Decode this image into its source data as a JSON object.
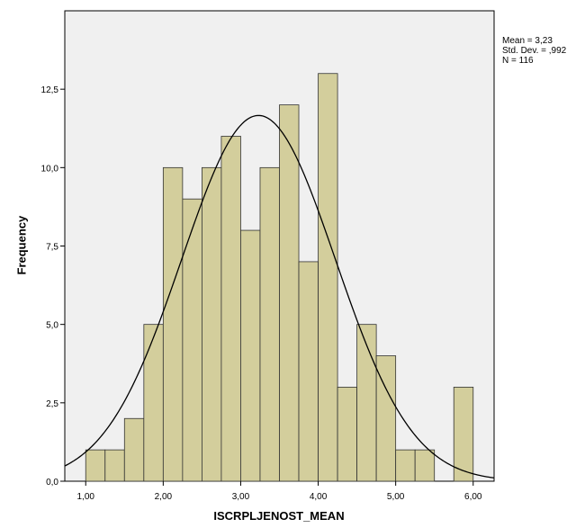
{
  "chart_data": {
    "type": "bar",
    "subtype": "histogram",
    "xlabel": "ISCRPLJENOST_MEAN",
    "ylabel": "Frequency",
    "xlim": [
      0.73,
      6.27
    ],
    "ylim": [
      0,
      15
    ],
    "x_ticks": [
      "1,00",
      "2,00",
      "3,00",
      "4,00",
      "5,00",
      "6,00"
    ],
    "x_tick_values": [
      1,
      2,
      3,
      4,
      5,
      6
    ],
    "y_ticks": [
      "0,0",
      "2,5",
      "5,0",
      "7,5",
      "10,0",
      "12,5"
    ],
    "y_tick_values": [
      0,
      2.5,
      5,
      7.5,
      10,
      12.5
    ],
    "bin_width": 0.25,
    "bins": [
      {
        "start": 1.0,
        "value": 1
      },
      {
        "start": 1.25,
        "value": 1
      },
      {
        "start": 1.5,
        "value": 2
      },
      {
        "start": 1.75,
        "value": 5
      },
      {
        "start": 2.0,
        "value": 10
      },
      {
        "start": 2.25,
        "value": 9
      },
      {
        "start": 2.5,
        "value": 10
      },
      {
        "start": 2.75,
        "value": 11
      },
      {
        "start": 3.0,
        "value": 8
      },
      {
        "start": 3.25,
        "value": 10
      },
      {
        "start": 3.5,
        "value": 12
      },
      {
        "start": 3.75,
        "value": 7
      },
      {
        "start": 4.0,
        "value": 13
      },
      {
        "start": 4.25,
        "value": 3
      },
      {
        "start": 4.5,
        "value": 5
      },
      {
        "start": 4.75,
        "value": 4
      },
      {
        "start": 5.0,
        "value": 1
      },
      {
        "start": 5.25,
        "value": 1
      },
      {
        "start": 5.5,
        "value": 0
      },
      {
        "start": 5.75,
        "value": 3
      }
    ],
    "normal_curve": {
      "mean": 3.23,
      "sd": 0.992,
      "n": 116
    },
    "stats_text": [
      "Mean = 3,23",
      "Std. Dev. = ,992",
      "N = 116"
    ],
    "colors": {
      "bar_fill": "#d3ce9c",
      "bar_stroke": "#333333",
      "plot_bg": "#f0f0f0",
      "curve": "#000000"
    },
    "grid": false
  }
}
